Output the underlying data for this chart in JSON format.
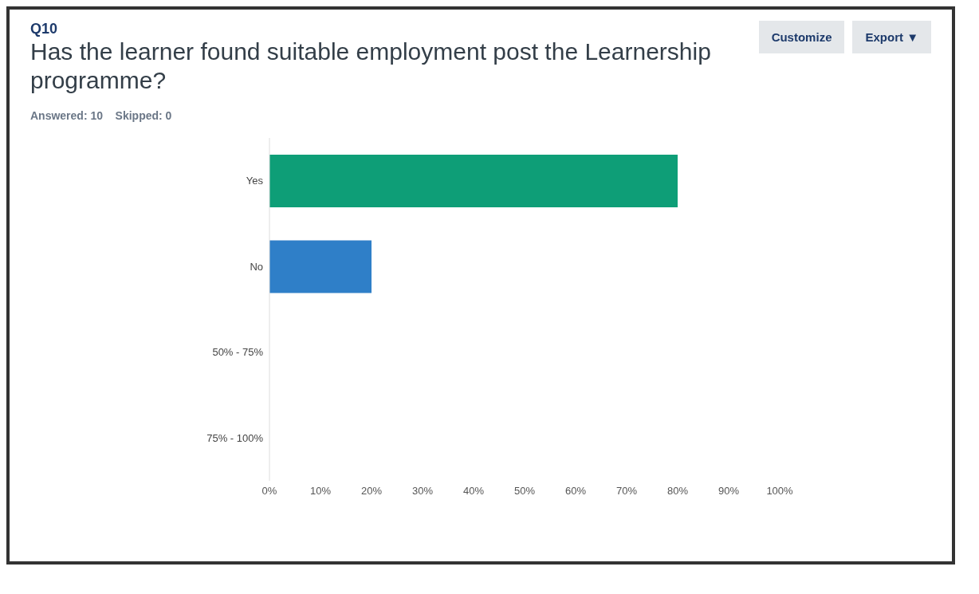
{
  "chart_data": {
    "type": "bar",
    "orientation": "horizontal",
    "title": "Has the learner found suitable employment post the Learnership programme?",
    "subtitle": "Answered: 10    Skipped: 0",
    "annotations": [
      "Q10",
      "Customize",
      "Export ▼"
    ],
    "categories": [
      "Yes",
      "No",
      "50% - 75%",
      "75% - 100%"
    ],
    "values": [
      80,
      20,
      0,
      0
    ],
    "colors": [
      "#0e9e77",
      "#2f7fc8",
      "#2f7fc8",
      "#2f7fc8"
    ],
    "xlim": [
      0,
      100
    ],
    "xticks": [
      {
        "value": 0,
        "label": "0%"
      },
      {
        "value": 10,
        "label": "10%"
      },
      {
        "value": 20,
        "label": "20%"
      },
      {
        "value": 30,
        "label": "30%"
      },
      {
        "value": 40,
        "label": "40%"
      },
      {
        "value": 50,
        "label": "50%"
      },
      {
        "value": 60,
        "label": "60%"
      },
      {
        "value": 70,
        "label": "70%"
      },
      {
        "value": 80,
        "label": "80%"
      },
      {
        "value": 90,
        "label": "90%"
      },
      {
        "value": 100,
        "label": "100%"
      }
    ],
    "grid": false,
    "legend": false
  }
}
